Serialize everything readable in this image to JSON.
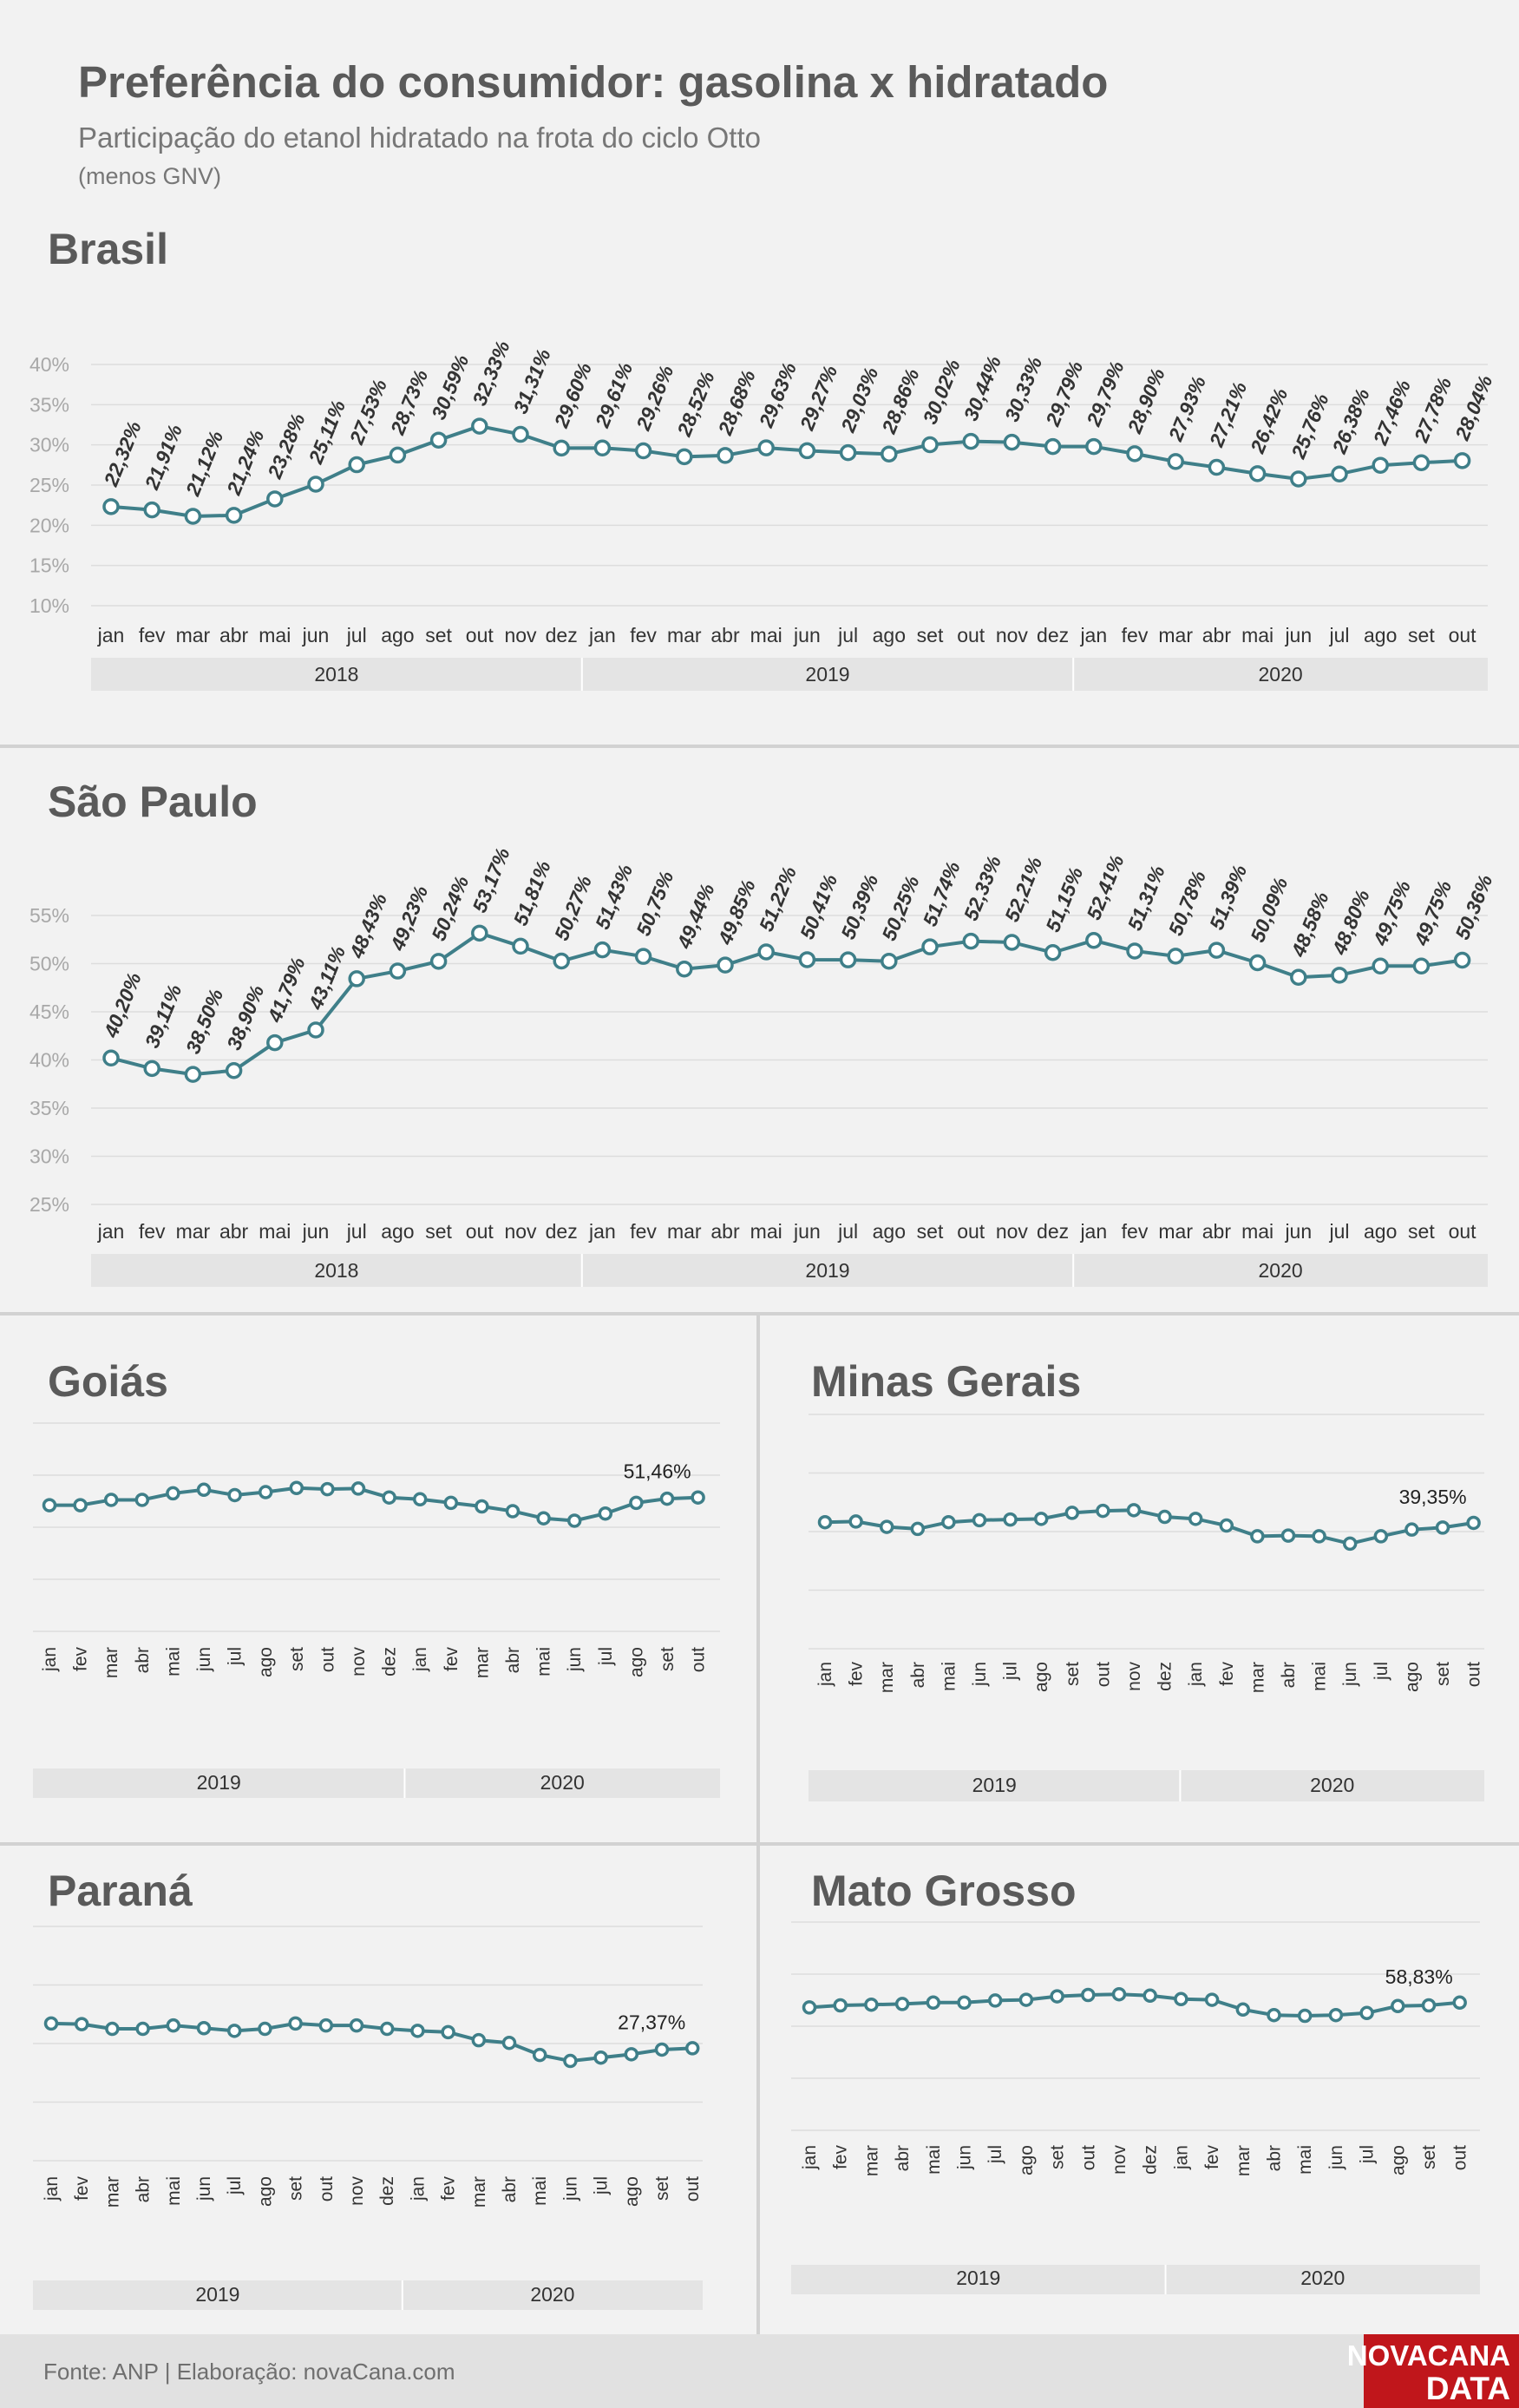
{
  "header": {
    "title": "Preferência do consumidor: gasolina x hidratado",
    "subtitle": "Participação do etanol hidratado na frota do ciclo Otto",
    "note": "(menos GNV)"
  },
  "footer": {
    "source": "Fonte: ANP | Elaboração: novaCana.com",
    "logo_line1": "NOVACANA",
    "logo_line2": "DATA"
  },
  "colors": {
    "line": "#3f7f89",
    "marker_fill": "#ffffff",
    "grid": "#dddddd",
    "band": "#e4e4e4",
    "label": "#333333",
    "background": "#f2f2f2",
    "logo": "#c0161b"
  },
  "chart_data": [
    {
      "type": "line",
      "title": "Brasil",
      "categories": [
        "jan",
        "fev",
        "mar",
        "abr",
        "mai",
        "jun",
        "jul",
        "ago",
        "set",
        "out",
        "nov",
        "dez",
        "jan",
        "fev",
        "mar",
        "abr",
        "mai",
        "jun",
        "jul",
        "ago",
        "set",
        "out",
        "nov",
        "dez",
        "jan",
        "fev",
        "mar",
        "abr",
        "mai",
        "jun",
        "jul",
        "ago",
        "set",
        "out"
      ],
      "groups": [
        {
          "label": "2018",
          "count": 12
        },
        {
          "label": "2019",
          "count": 12
        },
        {
          "label": "2020",
          "count": 10
        }
      ],
      "values": [
        22.32,
        21.91,
        21.12,
        21.24,
        23.28,
        25.11,
        27.53,
        28.73,
        30.59,
        32.33,
        31.31,
        29.6,
        29.61,
        29.26,
        28.52,
        28.68,
        29.63,
        29.27,
        29.03,
        28.86,
        30.02,
        30.44,
        30.33,
        29.79,
        29.79,
        28.9,
        27.93,
        27.21,
        26.42,
        25.76,
        26.38,
        27.46,
        27.78,
        28.04
      ],
      "labels": [
        "22,32%",
        "21,91%",
        "21,12%",
        "21,24%",
        "23,28%",
        "25,11%",
        "27,53%",
        "28,73%",
        "30,59%",
        "32,33%",
        "31,31%",
        "29,60%",
        "29,61%",
        "29,26%",
        "28,52%",
        "28,68%",
        "29,63%",
        "29,27%",
        "29,03%",
        "28,86%",
        "30,02%",
        "30,44%",
        "30,33%",
        "29,79%",
        "29,79%",
        "28,90%",
        "27,93%",
        "27,21%",
        "26,42%",
        "25,76%",
        "26,38%",
        "27,46%",
        "27,78%",
        "28,04%"
      ],
      "yticks": [
        "10%",
        "15%",
        "20%",
        "25%",
        "30%",
        "35%",
        "40%"
      ],
      "ylim": [
        10,
        40
      ],
      "grid": true
    },
    {
      "type": "line",
      "title": "São Paulo",
      "categories": [
        "jan",
        "fev",
        "mar",
        "abr",
        "mai",
        "jun",
        "jul",
        "ago",
        "set",
        "out",
        "nov",
        "dez",
        "jan",
        "fev",
        "mar",
        "abr",
        "mai",
        "jun",
        "jul",
        "ago",
        "set",
        "out",
        "nov",
        "dez",
        "jan",
        "fev",
        "mar",
        "abr",
        "mai",
        "jun",
        "jul",
        "ago",
        "set",
        "out"
      ],
      "groups": [
        {
          "label": "2018",
          "count": 12
        },
        {
          "label": "2019",
          "count": 12
        },
        {
          "label": "2020",
          "count": 10
        }
      ],
      "values": [
        40.2,
        39.11,
        38.5,
        38.9,
        41.79,
        43.11,
        48.43,
        49.23,
        50.24,
        53.17,
        51.81,
        50.27,
        51.43,
        50.75,
        49.44,
        49.85,
        51.22,
        50.41,
        50.39,
        50.25,
        51.74,
        52.33,
        52.21,
        51.15,
        52.41,
        51.31,
        50.78,
        51.39,
        50.09,
        48.58,
        48.8,
        49.75,
        49.75,
        50.36
      ],
      "labels": [
        "40,20%",
        "39,11%",
        "38,50%",
        "38,90%",
        "41,79%",
        "43,11%",
        "48,43%",
        "49,23%",
        "50,24%",
        "53,17%",
        "51,81%",
        "50,27%",
        "51,43%",
        "50,75%",
        "49,44%",
        "49,85%",
        "51,22%",
        "50,41%",
        "50,39%",
        "50,25%",
        "51,74%",
        "52,33%",
        "52,21%",
        "51,15%",
        "52,41%",
        "51,31%",
        "50,78%",
        "51,39%",
        "50,09%",
        "48,58%",
        "48,80%",
        "49,75%",
        "49,75%",
        "50,36%"
      ],
      "yticks": [
        "25%",
        "30%",
        "35%",
        "40%",
        "45%",
        "50%",
        "55%"
      ],
      "ylim": [
        25,
        55
      ],
      "grid": true
    },
    {
      "type": "line",
      "title": "Goiás",
      "categories": [
        "jan",
        "fev",
        "mar",
        "abr",
        "mai",
        "jun",
        "jul",
        "ago",
        "set",
        "out",
        "nov",
        "dez",
        "jan",
        "fev",
        "mar",
        "abr",
        "mai",
        "jun",
        "jul",
        "ago",
        "set",
        "out"
      ],
      "groups": [
        {
          "label": "2019",
          "count": 12
        },
        {
          "label": "2020",
          "count": 10
        }
      ],
      "values": [
        51.2,
        51.2,
        52.1,
        52.1,
        53.2,
        53.8,
        52.9,
        53.4,
        54.1,
        53.9,
        54.0,
        52.5,
        52.2,
        51.6,
        51.0,
        50.2,
        49.0,
        48.6,
        49.8,
        51.6,
        52.3,
        52.5
      ],
      "end_label": "51,46%",
      "ylim": [
        30,
        65
      ],
      "grid": true
    },
    {
      "type": "line",
      "title": "Minas Gerais",
      "categories": [
        "jan",
        "fev",
        "mar",
        "abr",
        "mai",
        "jun",
        "jul",
        "ago",
        "set",
        "out",
        "nov",
        "dez",
        "jan",
        "fev",
        "mar",
        "abr",
        "mai",
        "jun",
        "jul",
        "ago",
        "set",
        "out"
      ],
      "groups": [
        {
          "label": "2019",
          "count": 12
        },
        {
          "label": "2020",
          "count": 10
        }
      ],
      "values": [
        38.9,
        39.0,
        38.2,
        37.9,
        38.9,
        39.2,
        39.3,
        39.4,
        40.3,
        40.6,
        40.7,
        39.7,
        39.4,
        38.4,
        36.8,
        36.9,
        36.8,
        35.7,
        36.8,
        37.8,
        38.1,
        38.8
      ],
      "end_label": "39,35%",
      "ylim": [
        20,
        55
      ],
      "grid": true
    },
    {
      "type": "line",
      "title": "Paraná",
      "categories": [
        "jan",
        "fev",
        "mar",
        "abr",
        "mai",
        "jun",
        "jul",
        "ago",
        "set",
        "out",
        "nov",
        "dez",
        "jan",
        "fev",
        "mar",
        "abr",
        "mai",
        "jun",
        "jul",
        "ago",
        "set",
        "out"
      ],
      "groups": [
        {
          "label": "2019",
          "count": 12
        },
        {
          "label": "2020",
          "count": 10
        }
      ],
      "values": [
        30.5,
        30.4,
        29.7,
        29.7,
        30.2,
        29.8,
        29.4,
        29.7,
        30.5,
        30.2,
        30.2,
        29.7,
        29.4,
        29.2,
        28.0,
        27.6,
        25.8,
        24.9,
        25.4,
        25.9,
        26.6,
        26.8
      ],
      "end_label": "27,37%",
      "ylim": [
        10,
        45
      ],
      "grid": true
    },
    {
      "type": "line",
      "title": "Mato Grosso",
      "categories": [
        "jan",
        "fev",
        "mar",
        "abr",
        "mai",
        "jun",
        "jul",
        "ago",
        "set",
        "out",
        "nov",
        "dez",
        "jan",
        "fev",
        "mar",
        "abr",
        "mai",
        "jun",
        "jul",
        "ago",
        "set",
        "out"
      ],
      "groups": [
        {
          "label": "2019",
          "count": 12
        },
        {
          "label": "2020",
          "count": 10
        }
      ],
      "values": [
        57.7,
        58.0,
        58.1,
        58.2,
        58.4,
        58.4,
        58.7,
        58.8,
        59.3,
        59.5,
        59.6,
        59.4,
        58.9,
        58.8,
        57.4,
        56.6,
        56.5,
        56.6,
        56.9,
        57.9,
        58.0,
        58.4
      ],
      "end_label": "58,83%",
      "ylim": [
        40,
        70
      ],
      "grid": true
    }
  ]
}
